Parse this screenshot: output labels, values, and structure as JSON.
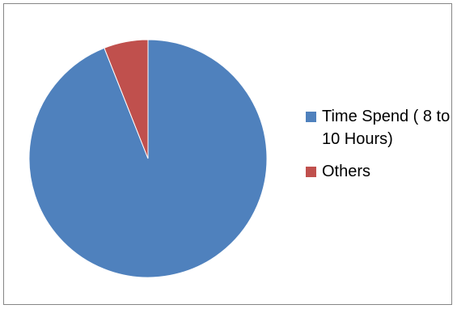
{
  "chart_data": {
    "type": "pie",
    "title": "",
    "slices": [
      {
        "label": "Time Spend ( 8 to 10 Hours)",
        "value": 94,
        "color": "#4F81BD"
      },
      {
        "label": "Others",
        "value": 6,
        "color": "#C0504D"
      }
    ],
    "start_angle_deg": 0,
    "direction": "clockwise",
    "legend_position": "right"
  },
  "legend": {
    "items": [
      {
        "label": "Time Spend ( 8 to 10 Hours)",
        "color": "#4F81BD"
      },
      {
        "label": "Others",
        "color": "#C0504D"
      }
    ]
  }
}
